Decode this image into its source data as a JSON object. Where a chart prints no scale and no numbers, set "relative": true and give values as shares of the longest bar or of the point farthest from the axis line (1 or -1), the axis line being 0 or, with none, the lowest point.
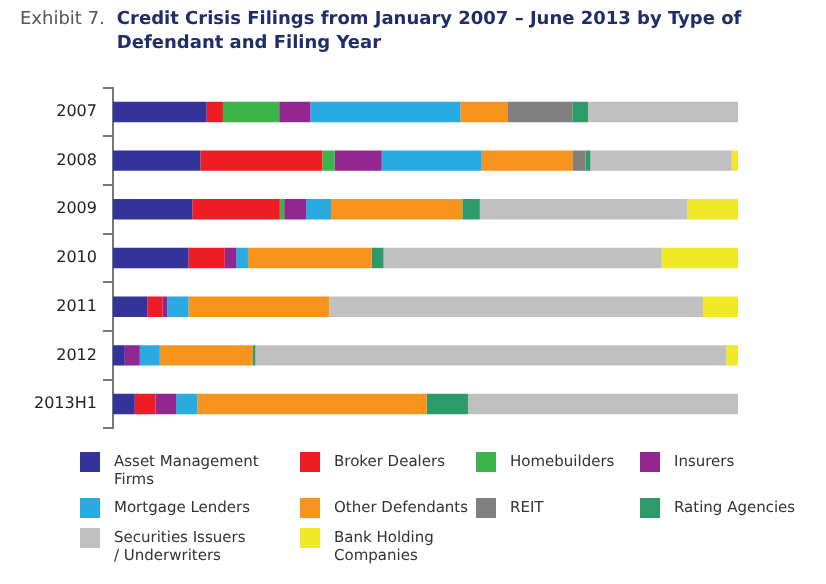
{
  "chart_data": {
    "type": "bar",
    "orientation": "horizontal",
    "stacked": true,
    "relative": true,
    "title": "Credit Crisis Filings from January 2007 – June 2013 by Type of Defendant and Filing Year",
    "annotations": [
      "Exhibit 7."
    ],
    "legend": "bottom",
    "categories": [
      "2007",
      "2008",
      "2009",
      "2010",
      "2011",
      "2012",
      "2013H1"
    ],
    "series": [
      {
        "name": "Asset Management Firms",
        "color": "#333399",
        "values": [
          0.15,
          0.14,
          0.127,
          0.121,
          0.055,
          0.019,
          0.035
        ]
      },
      {
        "name": "Broker Dealers",
        "color": "#ee1c25",
        "values": [
          0.026,
          0.195,
          0.14,
          0.058,
          0.024,
          0,
          0.033
        ]
      },
      {
        "name": "Homebuilders",
        "color": "#3cb44a",
        "values": [
          0.09,
          0.02,
          0.007,
          0,
          0,
          0,
          0
        ]
      },
      {
        "name": "Insurers",
        "color": "#92278f",
        "values": [
          0.05,
          0.075,
          0.035,
          0.018,
          0.008,
          0.024,
          0.033
        ]
      },
      {
        "name": "Mortgage Lenders",
        "color": "#29abe2",
        "values": [
          0.24,
          0.16,
          0.04,
          0.019,
          0.034,
          0.032,
          0.034
        ]
      },
      {
        "name": "Other Defendants",
        "color": "#f7941d",
        "values": [
          0.076,
          0.146,
          0.21,
          0.198,
          0.225,
          0.149,
          0.367
        ]
      },
      {
        "name": "REIT",
        "color": "#808080",
        "values": [
          0.103,
          0.02,
          0,
          0,
          0,
          0,
          0
        ]
      },
      {
        "name": "Rating Agencies",
        "color": "#2e9a6a",
        "values": [
          0.025,
          0.008,
          0.028,
          0.019,
          0,
          0.004,
          0.066
        ]
      },
      {
        "name": "Securities Issuers / Underwriters",
        "color": "#c0c0c0",
        "values": [
          0.24,
          0.226,
          0.332,
          0.445,
          0.598,
          0.753,
          0.432
        ]
      },
      {
        "name": "Bank Holding Companies",
        "color": "#f2e82a",
        "values": [
          0,
          0.01,
          0.081,
          0.122,
          0.056,
          0.019,
          0
        ]
      }
    ]
  }
}
